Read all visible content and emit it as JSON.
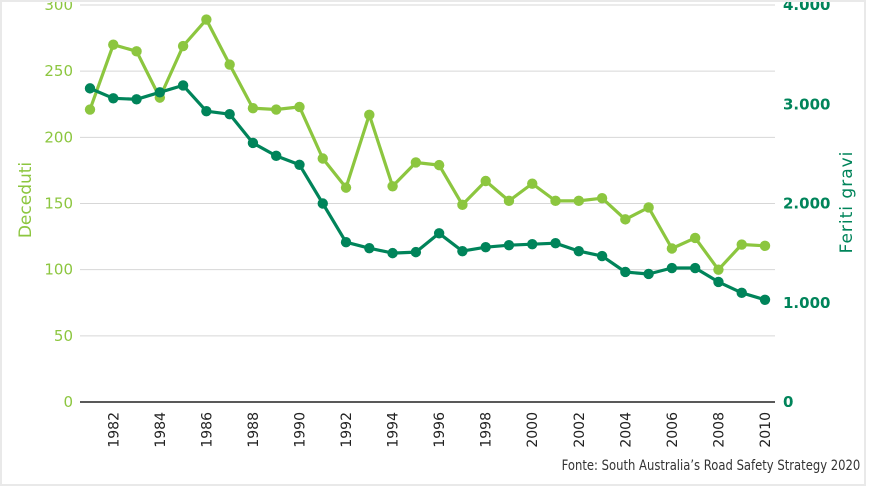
{
  "chart_data": {
    "type": "line",
    "title": "",
    "xlabel": "",
    "x": [
      1981,
      1982,
      1983,
      1984,
      1985,
      1986,
      1987,
      1988,
      1989,
      1990,
      1991,
      1992,
      1993,
      1994,
      1995,
      1996,
      1997,
      1998,
      1999,
      2000,
      2001,
      2002,
      2003,
      2004,
      2005,
      2006,
      2007,
      2008,
      2009,
      2010
    ],
    "x_ticks": [
      "1982",
      "1984",
      "1986",
      "1988",
      "1990",
      "1992",
      "1994",
      "1996",
      "1998",
      "2000",
      "2002",
      "2004",
      "2006",
      "2008",
      "2010"
    ],
    "y_left": {
      "label": "Deceduti",
      "ticks": [
        "0",
        "50",
        "100",
        "150",
        "200",
        "250",
        "300"
      ],
      "range": [
        0,
        300
      ],
      "color": "#8cc63f"
    },
    "y_right": {
      "label": "Feriti gravi",
      "ticks": [
        "0",
        "1.000",
        "2.000",
        "3.000",
        "4.000"
      ],
      "range": [
        0,
        4000
      ],
      "color": "#00845a"
    },
    "series": [
      {
        "name": "Deceduti",
        "axis": "left",
        "color": "#8cc63f",
        "values": [
          221,
          270,
          265,
          230,
          269,
          289,
          255,
          222,
          221,
          223,
          184,
          162,
          217,
          163,
          181,
          179,
          149,
          167,
          152,
          165,
          152,
          152,
          154,
          138,
          147,
          116,
          124,
          100,
          119,
          118
        ]
      },
      {
        "name": "Feriti gravi",
        "axis": "right",
        "color": "#00845a",
        "values": [
          3160,
          3060,
          3050,
          3120,
          3190,
          2930,
          2900,
          2610,
          2480,
          2390,
          2000,
          1610,
          1550,
          1500,
          1510,
          1700,
          1520,
          1560,
          1580,
          1590,
          1600,
          1520,
          1470,
          1310,
          1290,
          1350,
          1350,
          1210,
          1100,
          1030
        ]
      }
    ],
    "grid": true,
    "source": "Fonte: South Australia’s Road Safety Strategy 2020"
  }
}
